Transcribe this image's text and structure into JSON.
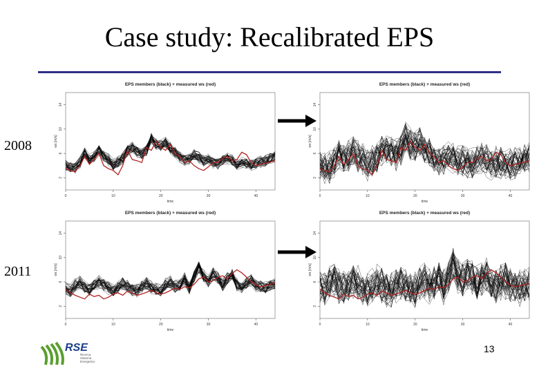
{
  "slide": {
    "title": "Case study: Recalibrated EPS",
    "page_number": "13"
  },
  "rows": [
    {
      "label": "2008"
    },
    {
      "label": "2011"
    }
  ],
  "logo": {
    "text": "RSE",
    "tagline": [
      "Ricerca",
      "Sistema",
      "Energetico"
    ]
  },
  "colors": {
    "title_rule": "#2e2e86",
    "members": "#000000",
    "measured": "#b22222",
    "logo_green": "#5a9e2f",
    "logo_blue": "#1b3e8a"
  },
  "chart_data": [
    {
      "id": "2008-original",
      "type": "line",
      "title": "EPS members (black) + measured ws (red)",
      "xlabel": "time",
      "ylabel": "ws [m/s]",
      "x_ticks": [
        "0",
        "10",
        "20",
        "30",
        "40"
      ],
      "y_ticks": [
        "2",
        "6",
        "10",
        "14"
      ],
      "xlim": [
        0,
        44
      ],
      "ylim": [
        0,
        16
      ],
      "ensemble_members": 40,
      "spread": 0.8,
      "ensemble_mean": [
        4,
        3.8,
        3.6,
        4.5,
        6,
        5,
        5.5,
        6.5,
        5.5,
        5,
        4.2,
        4.6,
        5.2,
        6.5,
        7,
        6.3,
        5.8,
        6.5,
        8.5,
        7.5,
        7.2,
        7.8,
        6.8,
        6.2,
        5.4,
        5,
        5.2,
        5.8,
        5.4,
        4.8,
        5,
        4.5,
        4.3,
        4.8,
        5.2,
        4.8,
        4.2,
        4.5,
        4.4,
        4.1,
        4.3,
        4.6,
        4.8,
        5.2,
        5.5
      ],
      "measured_ws": [
        3.5,
        3.2,
        3,
        4,
        5.5,
        4.2,
        5,
        6,
        4,
        3.5,
        3.2,
        2.5,
        4,
        6.5,
        5,
        4.8,
        4.5,
        7,
        6.5,
        8,
        7,
        6.5,
        7.5,
        6,
        5.5,
        4.5,
        4.8,
        4,
        3.5,
        3.2,
        3.8,
        4.5,
        4.5,
        5.2,
        5.5,
        4.8,
        5,
        6.2,
        5.8,
        4.5,
        4,
        4.2,
        4.4,
        4.6,
        4.8
      ]
    },
    {
      "id": "2008-recalibrated",
      "type": "line",
      "title": "EPS members (black) + measured ws (red)",
      "xlabel": "time",
      "ylabel": "ws [m/s]",
      "x_ticks": [
        "0",
        "10",
        "20",
        "30",
        "40"
      ],
      "y_ticks": [
        "2",
        "6",
        "10",
        "14"
      ],
      "xlim": [
        0,
        44
      ],
      "ylim": [
        0,
        16
      ],
      "ensemble_members": 40,
      "spread": 2.2,
      "ensemble_mean": [
        4,
        3.8,
        3.6,
        4.5,
        6,
        5,
        5.5,
        6.5,
        5.5,
        5,
        4.2,
        4.6,
        5.2,
        6.5,
        7,
        6.3,
        5.8,
        6.5,
        8.5,
        7.5,
        7.2,
        7.8,
        6.8,
        6.2,
        5.4,
        5,
        5.2,
        5.8,
        5.4,
        4.8,
        5,
        4.5,
        4.3,
        4.8,
        5.2,
        4.8,
        4.2,
        4.5,
        4.4,
        4.1,
        4.3,
        4.6,
        4.8,
        5.2,
        5.5
      ],
      "measured_ws": [
        3.5,
        3.2,
        3,
        4,
        5.5,
        4.2,
        5,
        6,
        4,
        3.5,
        3.2,
        2.5,
        4,
        6.5,
        5,
        4.8,
        4.5,
        7,
        6.5,
        8,
        7,
        6.5,
        7.5,
        6,
        5.5,
        4.5,
        4.8,
        4,
        3.5,
        3.2,
        3.8,
        4.5,
        4.5,
        5.2,
        5.5,
        4.8,
        5,
        6.2,
        5.8,
        4.5,
        4,
        4.2,
        4.4,
        4.6,
        4.8
      ]
    },
    {
      "id": "2011-original",
      "type": "line",
      "title": "EPS members (black) + measured ws (red)",
      "xlabel": "time",
      "ylabel": "ws [m/s]",
      "x_ticks": [
        "0",
        "10",
        "20",
        "30",
        "40"
      ],
      "y_ticks": [
        "2",
        "6",
        "10",
        "14"
      ],
      "xlim": [
        0,
        44
      ],
      "ylim": [
        0,
        16
      ],
      "ensemble_members": 40,
      "spread": 0.9,
      "ensemble_mean": [
        5,
        4.6,
        5.5,
        6,
        5.2,
        4.8,
        5.5,
        6,
        5.6,
        5,
        4.5,
        5,
        5.8,
        5.2,
        4.8,
        4.6,
        5.3,
        5.8,
        5.1,
        4.8,
        4.5,
        5.5,
        6,
        5.2,
        5.5,
        6.5,
        5,
        6.8,
        8.5,
        7,
        6,
        7.2,
        6.8,
        5.5,
        6.5,
        7.2,
        5.5,
        5,
        5.8,
        6.2,
        5.5,
        5.2,
        5,
        5.4,
        5.6
      ],
      "measured_ws": [
        4.8,
        4.2,
        3.8,
        3.5,
        3.2,
        4,
        3.6,
        3.8,
        3.2,
        3.5,
        4,
        4.2,
        3.8,
        4.5,
        4.2,
        3.8,
        4,
        4.3,
        4.6,
        4.2,
        4,
        4.2,
        4.6,
        5,
        4.8,
        5.2,
        5,
        5.6,
        6.5,
        6.8,
        6,
        6.2,
        6.8,
        7,
        6.5,
        7.4,
        8,
        7.5,
        6.8,
        6,
        5.5,
        5.2,
        5.4,
        5.6,
        5.8
      ]
    },
    {
      "id": "2011-recalibrated",
      "type": "line",
      "title": "EPS members (black) + measured ws (red)",
      "xlabel": "time",
      "ylabel": "ws [m/s]",
      "x_ticks": [
        "0",
        "10",
        "20",
        "30",
        "40"
      ],
      "y_ticks": [
        "2",
        "6",
        "10",
        "14"
      ],
      "xlim": [
        0,
        44
      ],
      "ylim": [
        0,
        16
      ],
      "ensemble_members": 40,
      "spread": 2.6,
      "ensemble_mean": [
        5,
        4.6,
        5.5,
        6,
        5.2,
        4.8,
        5.5,
        6,
        5.6,
        5,
        4.5,
        5,
        5.8,
        5.2,
        4.8,
        4.6,
        5.3,
        5.8,
        5.1,
        4.8,
        4.5,
        5.5,
        6,
        5.2,
        5.5,
        6.5,
        5,
        6.8,
        8.5,
        7,
        6,
        7.2,
        6.8,
        5.5,
        6.5,
        7.2,
        5.5,
        5,
        5.8,
        6.2,
        5.5,
        5.2,
        5,
        5.4,
        5.6
      ],
      "measured_ws": [
        4.8,
        4.2,
        3.8,
        3.5,
        3.2,
        4,
        3.6,
        3.8,
        3.2,
        3.5,
        4,
        4.2,
        3.8,
        4.5,
        4.2,
        3.8,
        4,
        4.3,
        4.6,
        4.2,
        4,
        4.2,
        4.6,
        5,
        4.8,
        5.2,
        5,
        5.6,
        6.5,
        6.8,
        6,
        6.2,
        6.8,
        7,
        6.5,
        7.4,
        8,
        7.5,
        6.8,
        6,
        5.5,
        5.2,
        5.4,
        5.6,
        5.8
      ]
    }
  ]
}
